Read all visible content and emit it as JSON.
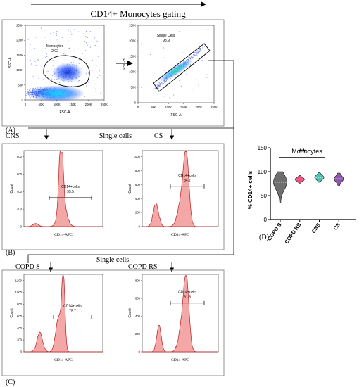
{
  "figure": {
    "header_title": "CD14+ Monocytes gating",
    "label_a": "(A)",
    "label_b": "(B)",
    "label_c": "(C)",
    "label_d": "(D)",
    "single_cells_b": "Single cells",
    "single_cells_c": "Single cells",
    "group_cns": "CNS",
    "group_cs": "CS",
    "group_copd_s": "COPD S",
    "group_copd_rs": "COPD RS"
  },
  "chart_data": [
    {
      "type": "scatter",
      "panel": "A-left",
      "xlabel": "FSC-A",
      "ylabel": "SSC-A",
      "x_ticks": [
        "0",
        "50K",
        "100K",
        "150K",
        "200K",
        "250K"
      ],
      "y_ticks": [
        "0",
        "50K",
        "100K",
        "150K",
        "200K",
        "250K"
      ],
      "gate_name": "Monocytes",
      "gate_value": "2.02"
    },
    {
      "type": "scatter",
      "panel": "A-right",
      "xlabel": "FSC-A",
      "ylabel": "FSC-H",
      "x_ticks": [
        "0",
        "50K",
        "100K",
        "150K",
        "200K",
        "250K"
      ],
      "y_ticks": [
        "0",
        "50K",
        "100K",
        "150K",
        "200K",
        "250K"
      ],
      "gate_name": "Single Cells",
      "gate_value": "93.9"
    },
    {
      "type": "area",
      "panel": "B-CNS",
      "xlabel": "CD14-APC",
      "ylabel": "Count",
      "y_ticks": [
        "0",
        "200",
        "400",
        "600",
        "800"
      ],
      "gate_name": "CD14+cells",
      "gate_value": "95.5"
    },
    {
      "type": "area",
      "panel": "B-CS",
      "xlabel": "CD14-APC",
      "ylabel": "Count",
      "y_ticks": [
        "0",
        "200",
        "400",
        "600",
        "800",
        "1000"
      ],
      "gate_name": "CD14+cells",
      "gate_value": "84.7"
    },
    {
      "type": "area",
      "panel": "C-COPD S",
      "xlabel": "CD14-APC",
      "ylabel": "Count",
      "y_ticks": [
        "0",
        "200",
        "400",
        "600",
        "800",
        "1000",
        "1200"
      ],
      "gate_name": "CD14+cells",
      "gate_value": "75.7"
    },
    {
      "type": "area",
      "panel": "C-COPD RS",
      "xlabel": "CD14-APC",
      "ylabel": "Count",
      "y_ticks": [
        "0",
        "200",
        "400",
        "600",
        "800"
      ],
      "gate_name": "CD14+cells",
      "gate_value": "81.5"
    },
    {
      "type": "violin",
      "panel": "D",
      "title": "Monocytes",
      "ylabel": "% CD14+ cells",
      "ylim": [
        0,
        150
      ],
      "y_ticks": [
        0,
        50,
        100,
        150
      ],
      "categories": [
        "COPD S",
        "COPD RS",
        "CNS",
        "CS"
      ],
      "colors": [
        "#555555",
        "#e8306a",
        "#2fb8a8",
        "#7a3c9a"
      ],
      "medians": [
        78,
        84,
        88,
        85
      ],
      "ranges": [
        [
          35,
          100
        ],
        [
          76,
          92
        ],
        [
          78,
          98
        ],
        [
          70,
          97
        ]
      ],
      "significance": "**"
    }
  ]
}
